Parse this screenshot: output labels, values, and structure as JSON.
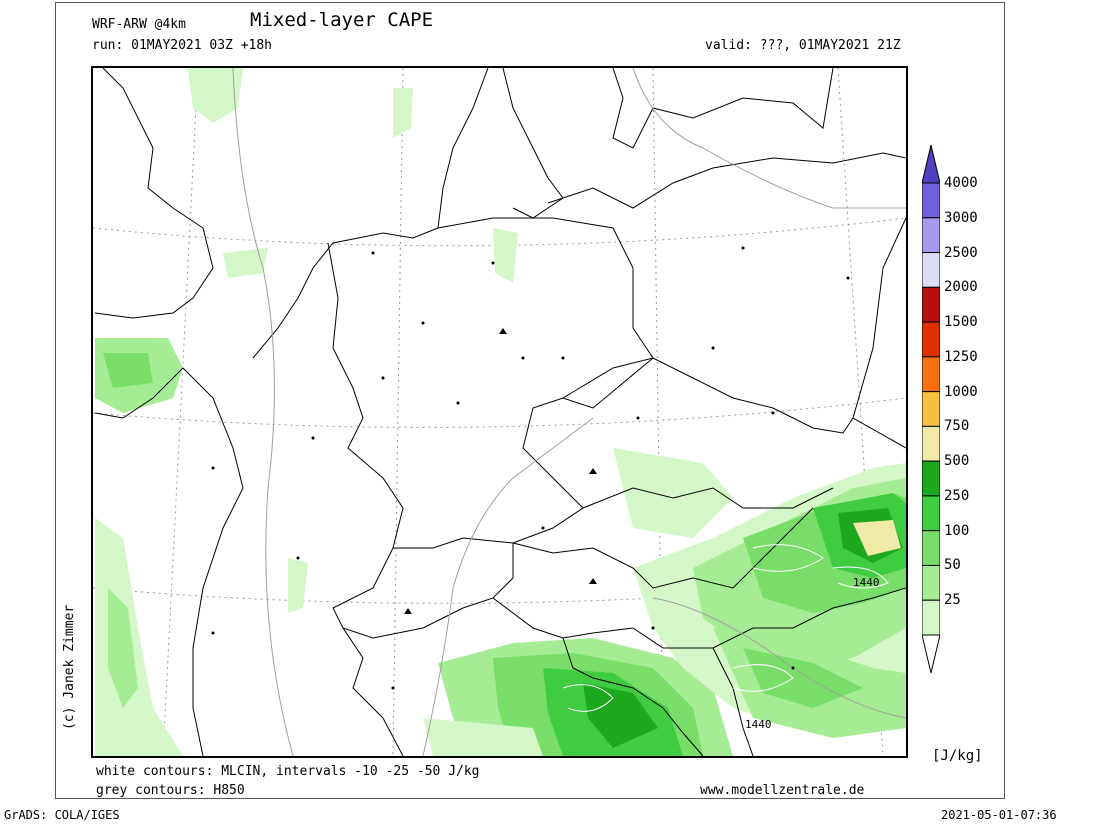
{
  "header": {
    "model": "WRF-ARW @4km",
    "title": "Mixed-layer CAPE",
    "run": "run: 01MAY2021 03Z +18h",
    "valid": "valid: ???, 01MAY2021 21Z"
  },
  "footer": {
    "line1": "white contours: MLCIN, intervals -10 -25 -50 J/kg",
    "line2": "grey contours: H850",
    "website": "www.modellzentrale.de",
    "grads": "GrADS: COLA/IGES",
    "timestamp": "2021-05-01-07:36"
  },
  "copyright": "(c) Janek Zimmer",
  "legend": {
    "unit": "[J/kg]",
    "levels": [
      {
        "value": "25",
        "color": "#d4f7c8"
      },
      {
        "value": "50",
        "color": "#a6ec94"
      },
      {
        "value": "100",
        "color": "#78de68"
      },
      {
        "value": "250",
        "color": "#40cc40"
      },
      {
        "value": "500",
        "color": "#1ea81e"
      },
      {
        "value": "750",
        "color": "#f0eaa8"
      },
      {
        "value": "1000",
        "color": "#f8c040"
      },
      {
        "value": "1250",
        "color": "#f87010"
      },
      {
        "value": "1500",
        "color": "#e03000"
      },
      {
        "value": "2000",
        "color": "#b81010"
      },
      {
        "value": "2500",
        "color": "#dcdcf8"
      },
      {
        "value": "3000",
        "color": "#a898f0"
      },
      {
        "value": "4000",
        "color": "#7060e0"
      }
    ],
    "top_color": "#5040c0"
  },
  "contour_labels": [
    "1440",
    "1440"
  ],
  "colors": {
    "cape_light": "#d4f7c8",
    "cape_50": "#a6ec94",
    "cape_100": "#78de68",
    "cape_250": "#40cc40",
    "cape_500": "#1ea81e",
    "cape_750": "#f0eaa8",
    "grey_contour": "#a0a0a0"
  }
}
